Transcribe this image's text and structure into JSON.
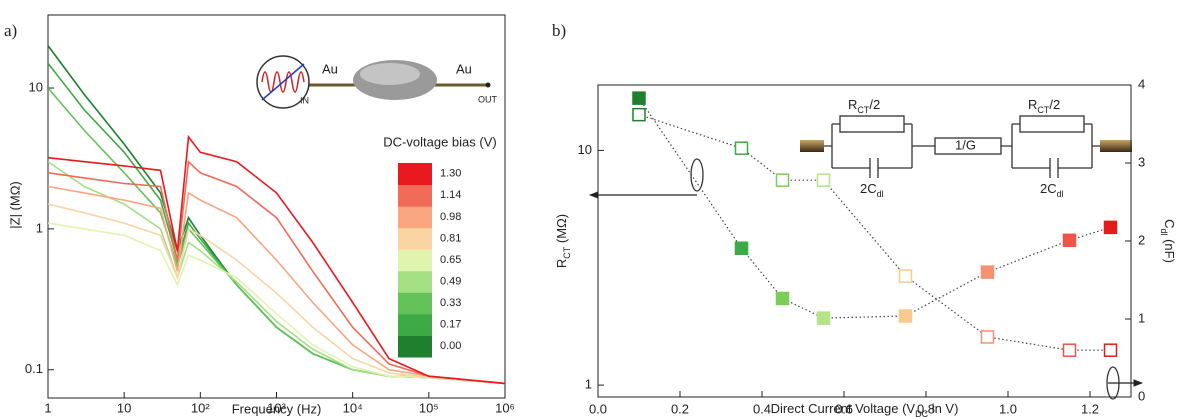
{
  "chart_data": [
    {
      "type": "line",
      "panel": "a)",
      "xlabel": "Frequency (Hz)",
      "ylabel": "|Z| (MΩ)",
      "xscale": "log",
      "yscale": "log",
      "x": [
        1,
        3,
        10,
        30,
        50,
        70,
        100,
        300,
        1000,
        3000,
        10000,
        30000,
        100000,
        1000000
      ],
      "xlim": [
        1,
        1000000
      ],
      "xticks": [
        1,
        10,
        {
          "value": 100,
          "label": "10²"
        },
        {
          "value": 1000,
          "label": "10³"
        },
        {
          "value": 10000,
          "label": "10⁴"
        },
        {
          "value": 100000,
          "label": "10⁵"
        },
        {
          "value": 1000000,
          "label": "10⁶"
        }
      ],
      "ylim": [
        0.063,
        33
      ],
      "yticks": [
        0.1,
        1,
        10
      ],
      "legend_title": "DC-voltage bias (V)",
      "legend": "upper right",
      "inset_labels": [
        "Au",
        "Au",
        "IN",
        "OUT"
      ],
      "series": [
        {
          "name": "0.00",
          "color": "#1e7f2e",
          "values": [
            20,
            9,
            4,
            1.8,
            0.7,
            1.2,
            0.9,
            0.4,
            0.2,
            0.13,
            0.1,
            0.09,
            0.088,
            0.08
          ]
        },
        {
          "name": "0.17",
          "color": "#3daa45",
          "values": [
            15,
            7,
            3.5,
            1.6,
            0.6,
            1.1,
            0.85,
            0.4,
            0.2,
            0.13,
            0.1,
            0.09,
            0.088,
            0.08
          ]
        },
        {
          "name": "0.33",
          "color": "#63c35a",
          "values": [
            10,
            5,
            2.5,
            1.3,
            0.55,
            1.0,
            0.8,
            0.4,
            0.2,
            0.13,
            0.1,
            0.09,
            0.088,
            0.08
          ]
        },
        {
          "name": "0.49",
          "color": "#a4df84",
          "values": [
            3,
            2,
            1.5,
            1.0,
            0.45,
            0.8,
            0.7,
            0.42,
            0.22,
            0.14,
            0.1,
            0.09,
            0.088,
            0.08
          ]
        },
        {
          "name": "0.65",
          "color": "#e0f4b0",
          "values": [
            1.1,
            1.0,
            0.9,
            0.7,
            0.4,
            0.65,
            0.6,
            0.45,
            0.25,
            0.15,
            0.105,
            0.09,
            0.088,
            0.08
          ]
        },
        {
          "name": "0.81",
          "color": "#fbd4a4",
          "values": [
            1.5,
            1.3,
            1.1,
            0.9,
            0.45,
            1.0,
            0.9,
            0.6,
            0.35,
            0.2,
            0.12,
            0.095,
            0.088,
            0.08
          ]
        },
        {
          "name": "0.98",
          "color": "#f8a580",
          "values": [
            2.0,
            1.8,
            1.6,
            1.4,
            0.5,
            1.8,
            1.6,
            1.2,
            0.6,
            0.3,
            0.15,
            0.1,
            0.09,
            0.08
          ]
        },
        {
          "name": "1.14",
          "color": "#f26a58",
          "values": [
            2.5,
            2.3,
            2.1,
            2.0,
            0.6,
            3.0,
            2.5,
            2.0,
            1.2,
            0.5,
            0.2,
            0.11,
            0.09,
            0.08
          ]
        },
        {
          "name": "1.30",
          "color": "#e8191f",
          "values": [
            3.2,
            3.0,
            2.8,
            2.6,
            0.7,
            4.5,
            3.5,
            3.0,
            1.8,
            0.8,
            0.3,
            0.12,
            0.09,
            0.08
          ]
        }
      ]
    },
    {
      "type": "scatter",
      "panel": "b)",
      "xlabel": [
        "Direct Current Voltage (V",
        "DC",
        " in V)"
      ],
      "ylabel": [
        "R",
        "CT",
        " (MΩ)"
      ],
      "y2label": [
        "C",
        "dl",
        " (nF)"
      ],
      "x": [
        0.1,
        0.35,
        0.45,
        0.55,
        0.75,
        0.95,
        1.15,
        1.25
      ],
      "xlim": [
        0,
        1.3
      ],
      "xticks": [
        {
          "value": 0,
          "label": "0.0"
        },
        0.2,
        0.4,
        0.6,
        0.8,
        {
          "value": 1,
          "label": "1.0"
        },
        1.2
      ],
      "yscale": "log",
      "ylim": [
        0.89,
        19
      ],
      "yticks": [
        1,
        10
      ],
      "y2lim": [
        0,
        4
      ],
      "y2ticks": [
        0,
        1,
        2,
        3,
        4
      ],
      "colors": [
        "#1e7f2e",
        "#3daa45",
        "#7ccc5a",
        "#b6e38a",
        "#f9c98e",
        "#f59070",
        "#ee5548",
        "#e31b1b"
      ],
      "series": [
        {
          "marker": "filled",
          "values": [
            16.7,
            3.83,
            2.34,
            1.93,
            1.97,
            3.03,
            4.14,
            4.7
          ]
        },
        {
          "marker": "open",
          "axis": "y2",
          "values": [
            3.62,
            3.19,
            2.78,
            2.78,
            1.55,
            0.77,
            0.6,
            0.6
          ]
        }
      ],
      "circuit_labels": [
        [
          "R",
          "CT",
          "/2"
        ],
        "1/G",
        [
          "R",
          "CT",
          "/2"
        ],
        [
          "2C",
          "dl"
        ],
        [
          "2C",
          "dl"
        ]
      ]
    }
  ]
}
